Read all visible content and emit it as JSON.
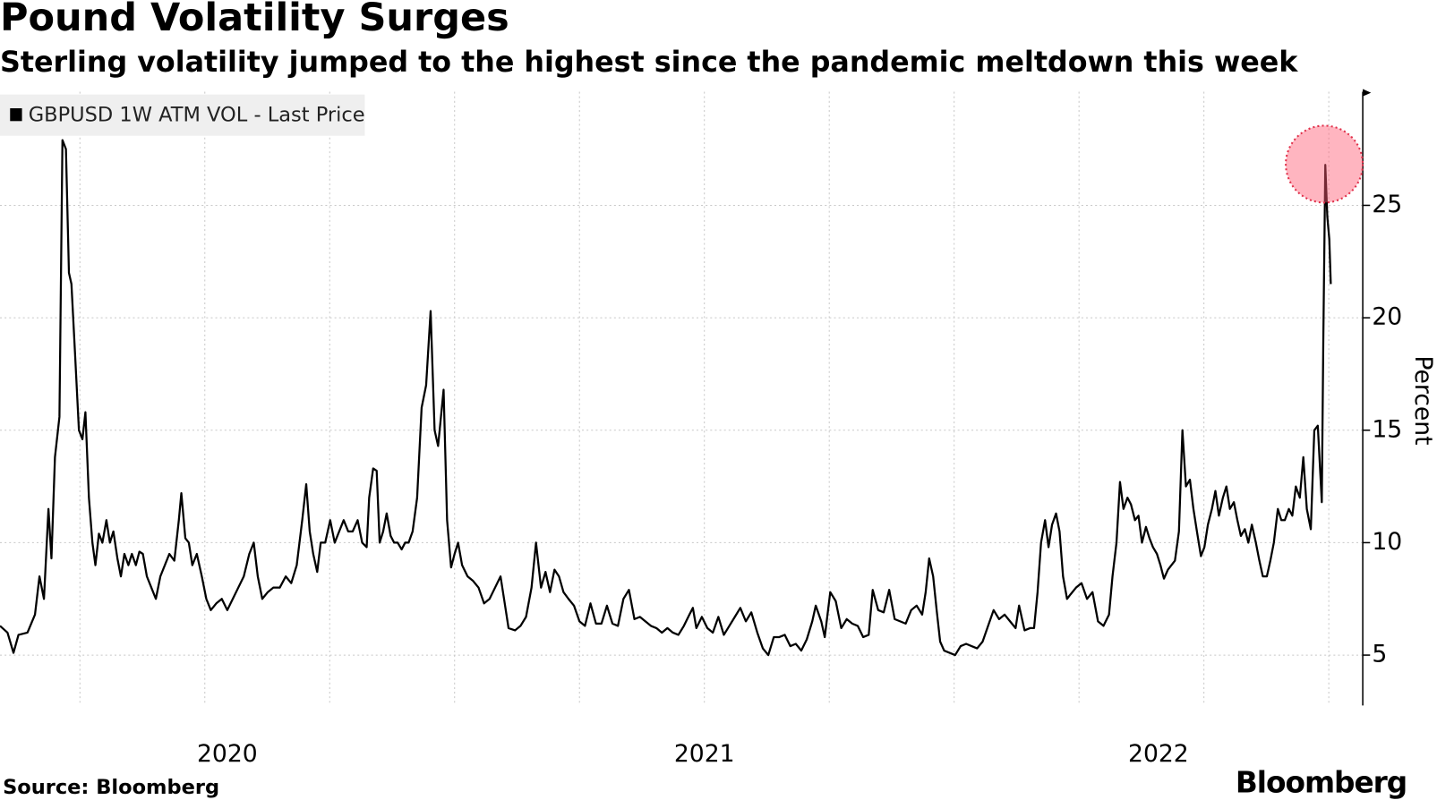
{
  "chart_data": {
    "type": "line",
    "title": "Pound Volatility Surges",
    "subtitle": "Sterling volatility jumped to the highest since the pandemic meltdown this week",
    "y_label": "Percent",
    "source": "Source: Bloomberg",
    "logo": "Bloomberg",
    "ylim": [
      2.76,
      30.05
    ],
    "yticks": [
      5,
      10,
      15,
      20,
      25
    ],
    "y_axis_side": "right",
    "xlim": [
      2020.09,
      2022.818
    ],
    "xticks": [
      2020,
      2021,
      2022
    ],
    "xgrid": [
      2020.25,
      2020.5,
      2020.75,
      2021,
      2021.25,
      2021.5,
      2021.75,
      2022,
      2022.25,
      2022.5,
      2022.75
    ],
    "grid": true,
    "legend": "top-left",
    "x": [
      2020.09,
      2020.105,
      2020.117,
      2020.127,
      2020.145,
      2020.16,
      2020.169,
      2020.178,
      2020.187,
      2020.193,
      2020.2,
      2020.209,
      2020.215,
      2020.222,
      2020.228,
      2020.233,
      2020.24,
      2020.248,
      2020.255,
      2020.261,
      2020.268,
      2020.275,
      2020.281,
      2020.288,
      2020.295,
      2020.303,
      2020.31,
      2020.317,
      2020.325,
      2020.332,
      2020.339,
      2020.347,
      2020.354,
      2020.362,
      2020.369,
      2020.376,
      2020.384,
      2020.393,
      2020.402,
      2020.411,
      2020.42,
      2020.429,
      2020.439,
      2020.448,
      2020.453,
      2020.461,
      2020.468,
      2020.475,
      2020.484,
      2020.494,
      2020.503,
      2020.512,
      2020.523,
      2020.534,
      2020.545,
      2020.556,
      2020.567,
      2020.578,
      2020.589,
      2020.598,
      2020.606,
      2020.615,
      2020.626,
      2020.637,
      2020.65,
      2020.662,
      2020.673,
      2020.684,
      2020.695,
      2020.703,
      2020.71,
      2020.717,
      2020.725,
      2020.732,
      2020.741,
      2020.751,
      2020.76,
      2020.769,
      2020.778,
      2020.787,
      2020.796,
      2020.806,
      2020.815,
      2020.824,
      2020.829,
      2020.837,
      2020.844,
      2020.85,
      2020.857,
      2020.864,
      2020.872,
      2020.879,
      2020.886,
      2020.894,
      2020.901,
      2020.908,
      2020.916,
      2020.925,
      2020.934,
      2020.943,
      2020.952,
      2020.96,
      2020.967,
      2020.978,
      2020.985,
      2020.993,
      2021.0,
      2021.007,
      2021.015,
      2021.026,
      2021.037,
      2021.048,
      2021.059,
      2021.07,
      2021.081,
      2021.092,
      2021.099,
      2021.108,
      2021.121,
      2021.132,
      2021.143,
      2021.154,
      2021.163,
      2021.173,
      2021.182,
      2021.191,
      2021.2,
      2021.209,
      2021.218,
      2021.228,
      2021.239,
      2021.25,
      2021.261,
      2021.272,
      2021.283,
      2021.294,
      2021.305,
      2021.316,
      2021.327,
      2021.338,
      2021.349,
      2021.36,
      2021.371,
      2021.382,
      2021.393,
      2021.404,
      2021.415,
      2021.426,
      2021.437,
      2021.448,
      2021.459,
      2021.47,
      2021.477,
      2021.484,
      2021.495,
      2021.506,
      2021.517,
      2021.528,
      2021.539,
      2021.55,
      2021.561,
      2021.572,
      2021.583,
      2021.594,
      2021.606,
      2021.617,
      2021.628,
      2021.639,
      2021.65,
      2021.661,
      2021.672,
      2021.683,
      2021.694,
      2021.705,
      2021.716,
      2021.723,
      2021.734,
      2021.741,
      2021.752,
      2021.763,
      2021.774,
      2021.785,
      2021.796,
      2021.807,
      2021.818,
      2021.829,
      2021.837,
      2021.848,
      2021.859,
      2021.87,
      2021.881,
      2021.892,
      2021.903,
      2021.914,
      2021.925,
      2021.936,
      2021.943,
      2021.95,
      2021.958,
      2021.965,
      2021.972,
      2021.98,
      2021.991,
      2022.002,
      2022.013,
      2022.024,
      2022.035,
      2022.046,
      2022.057,
      2022.068,
      2022.079,
      2022.09,
      2022.101,
      2022.112,
      2022.123,
      2022.13,
      2022.141,
      2022.152,
      2022.16,
      2022.167,
      2022.174,
      2022.182,
      2022.189,
      2022.196,
      2022.204,
      2022.211,
      2022.218,
      2022.226,
      2022.233,
      2022.244,
      2022.255,
      2022.266,
      2022.277,
      2022.288,
      2022.299,
      2022.31,
      2022.317,
      2022.325,
      2022.332,
      2022.339,
      2022.347,
      2022.354,
      2022.362,
      2022.369,
      2022.376,
      2022.384,
      2022.391,
      2022.398,
      2022.406,
      2022.413,
      2022.42,
      2022.428,
      2022.435,
      2022.442,
      2022.45,
      2022.457,
      2022.464,
      2022.472,
      2022.479,
      2022.486,
      2022.494,
      2022.501,
      2022.508,
      2022.516,
      2022.523,
      2022.53,
      2022.538,
      2022.545,
      2022.552,
      2022.56,
      2022.567,
      2022.574,
      2022.582,
      2022.589,
      2022.596,
      2022.604,
      2022.611,
      2022.618,
      2022.626,
      2022.633,
      2022.64,
      2022.648,
      2022.655,
      2022.662,
      2022.67,
      2022.677,
      2022.684,
      2022.692,
      2022.699,
      2022.706,
      2022.714,
      2022.721,
      2022.728,
      2022.736,
      2022.739,
      2022.743,
      2022.747,
      2022.751,
      2022.754
    ],
    "series": [
      {
        "name": "GBPUSD 1W ATM VOL - Last Price",
        "color": "#000000",
        "values": [
          6.3,
          6.0,
          5.1,
          5.9,
          6.0,
          6.8,
          8.5,
          7.5,
          11.5,
          9.3,
          13.8,
          15.6,
          27.9,
          27.5,
          22.0,
          21.5,
          18.5,
          15.0,
          14.6,
          15.8,
          12.0,
          10.0,
          9.0,
          10.4,
          10.0,
          11.0,
          10.0,
          10.5,
          9.3,
          8.5,
          9.5,
          9.0,
          9.5,
          9.0,
          9.6,
          9.5,
          8.5,
          8.0,
          7.5,
          8.5,
          9.0,
          9.5,
          9.2,
          11.0,
          12.2,
          10.2,
          10.0,
          9.0,
          9.5,
          8.5,
          7.5,
          7.0,
          7.3,
          7.5,
          7.0,
          7.5,
          8.0,
          8.5,
          9.5,
          10.0,
          8.5,
          7.5,
          7.8,
          8.0,
          8.0,
          8.5,
          8.2,
          9.0,
          11.0,
          12.6,
          10.5,
          9.5,
          8.7,
          10.0,
          10.0,
          11.0,
          10.0,
          10.5,
          11.0,
          10.5,
          10.5,
          11.0,
          10.0,
          9.8,
          12.0,
          13.3,
          13.2,
          10.0,
          10.5,
          11.3,
          10.3,
          10.0,
          10.0,
          9.7,
          10.0,
          10.0,
          10.5,
          12.0,
          16.0,
          17.0,
          20.3,
          15.0,
          14.3,
          16.8,
          11.0,
          8.9,
          9.5,
          10.0,
          9.0,
          8.5,
          8.3,
          8.0,
          7.3,
          7.5,
          8.0,
          8.5,
          7.5,
          6.2,
          6.1,
          6.3,
          6.7,
          8.0,
          10.0,
          8.0,
          8.7,
          7.8,
          8.8,
          8.5,
          7.8,
          7.5,
          7.2,
          6.5,
          6.3,
          7.3,
          6.4,
          6.4,
          7.2,
          6.4,
          6.3,
          7.5,
          7.9,
          6.6,
          6.7,
          6.5,
          6.3,
          6.2,
          6.0,
          6.2,
          6.0,
          5.9,
          6.3,
          6.8,
          7.1,
          6.2,
          6.7,
          6.2,
          6.0,
          6.7,
          5.9,
          6.3,
          6.7,
          7.1,
          6.5,
          6.9,
          6.0,
          5.3,
          5.0,
          5.8,
          5.8,
          5.9,
          5.4,
          5.5,
          5.2,
          5.7,
          6.5,
          7.2,
          6.5,
          5.8,
          7.8,
          7.4,
          6.2,
          6.6,
          6.4,
          6.3,
          5.8,
          5.9,
          7.9,
          7.0,
          6.9,
          7.9,
          6.6,
          6.5,
          6.4,
          7.0,
          7.2,
          6.8,
          7.8,
          9.3,
          8.5,
          7.0,
          5.6,
          5.2,
          5.1,
          5.0,
          5.4,
          5.5,
          5.4,
          5.3,
          5.6,
          6.3,
          7.0,
          6.6,
          6.8,
          6.5,
          6.2,
          7.2,
          6.1,
          6.2,
          6.2,
          7.8,
          10.0,
          11.0,
          9.8,
          10.8,
          11.3,
          10.5,
          8.5,
          7.5,
          7.7,
          8.0,
          8.2,
          7.5,
          7.8,
          6.5,
          6.3,
          6.8,
          8.5,
          10.0,
          12.7,
          11.5,
          12.0,
          11.7,
          11.0,
          11.2,
          10.0,
          10.7,
          10.2,
          9.8,
          9.5,
          9.0,
          8.4,
          8.8,
          9.0,
          9.2,
          10.5,
          15.0,
          12.5,
          12.8,
          11.5,
          10.5,
          9.4,
          9.8,
          10.8,
          11.5,
          12.3,
          11.2,
          12.0,
          12.5,
          11.5,
          11.8,
          11.0,
          10.3,
          10.6,
          10.0,
          10.8,
          10.0,
          9.2,
          8.5,
          8.5,
          9.2,
          10.0,
          11.5,
          11.0,
          11.0,
          11.5,
          11.2,
          12.5,
          12.0,
          13.8,
          11.5,
          10.6,
          15.0,
          15.2,
          11.8,
          19.0,
          26.8,
          24.5,
          23.5,
          21.5
        ]
      }
    ]
  }
}
